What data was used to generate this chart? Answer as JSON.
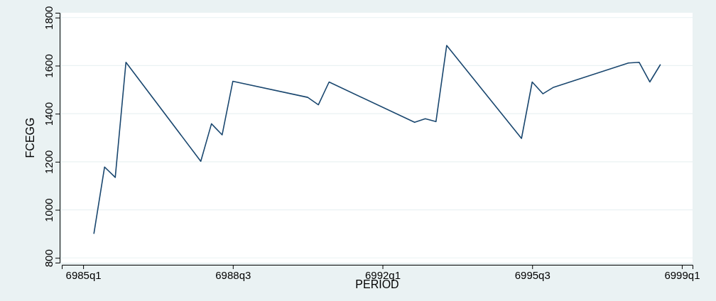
{
  "chart_data": {
    "type": "line",
    "xlabel": "PERIOD",
    "ylabel": "FCEGG",
    "categories": [
      "6985q1",
      null,
      null,
      null,
      null,
      null,
      null,
      null,
      null,
      null,
      null,
      null,
      null,
      null,
      "6988q3",
      null,
      null,
      null,
      null,
      null,
      null,
      null,
      null,
      null,
      null,
      null,
      null,
      null,
      "6992q1",
      null,
      null,
      null,
      null,
      null,
      null,
      null,
      null,
      null,
      null,
      null,
      null,
      null,
      "6995q3",
      null,
      null,
      null,
      null,
      null,
      null,
      null,
      null,
      null,
      null,
      null,
      null,
      null,
      "6999q1"
    ],
    "series": [
      {
        "color": "#1a476f",
        "values": [
          null,
          900,
          1178,
          1135,
          1614,
          null,
          null,
          null,
          null,
          null,
          null,
          1202,
          1358,
          1312,
          1535,
          null,
          null,
          null,
          null,
          null,
          null,
          1468,
          1437,
          1532,
          null,
          null,
          null,
          null,
          null,
          null,
          null,
          1364,
          1379,
          1367,
          1684,
          null,
          null,
          null,
          null,
          null,
          null,
          1297,
          1532,
          1483,
          1510,
          null,
          null,
          null,
          null,
          null,
          null,
          1611,
          1614,
          1532,
          1605,
          null,
          null
        ]
      }
    ],
    "ylim": [
      780,
      1820
    ],
    "yticks": [
      800,
      1000,
      1200,
      1400,
      1600,
      1800
    ],
    "grid": "y",
    "marker": "none",
    "line_style": "solid"
  }
}
